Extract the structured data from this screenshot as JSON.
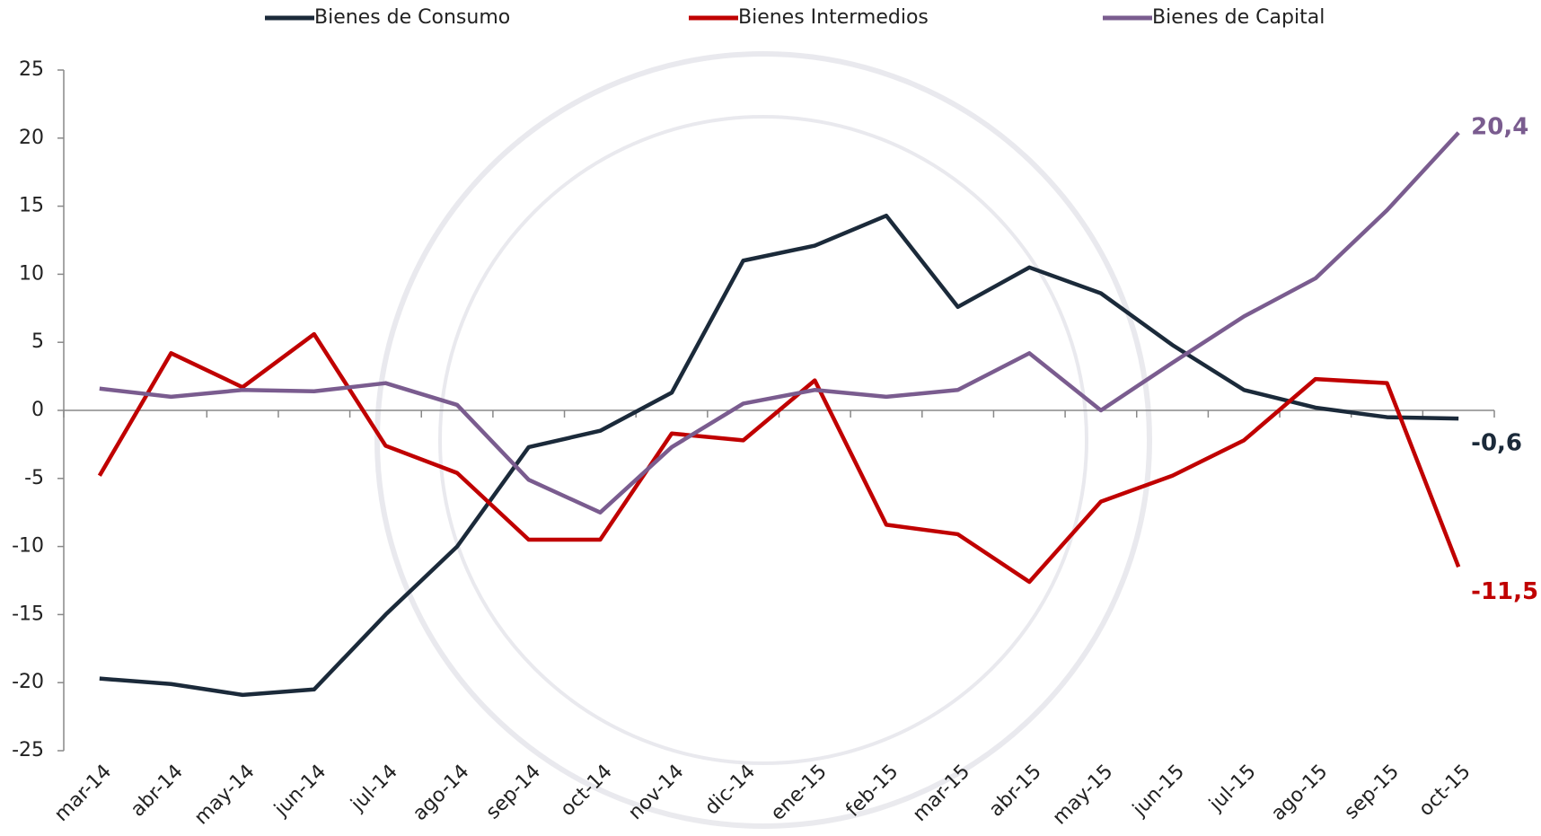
{
  "chart_data": {
    "type": "line",
    "categories": [
      "mar-14",
      "abr-14",
      "may-14",
      "jun-14",
      "jul-14",
      "ago-14",
      "sep-14",
      "oct-14",
      "nov-14",
      "dic-14",
      "ene-15",
      "feb-15",
      "mar-15",
      "abr-15",
      "may-15",
      "jun-15",
      "jul-15",
      "ago-15",
      "sep-15",
      "oct-15"
    ],
    "series": [
      {
        "name": "Bienes de Consumo",
        "color": "#1b2a3a",
        "values": [
          -19.7,
          -20.1,
          -20.9,
          -20.5,
          -15.0,
          -10.0,
          -2.7,
          -1.5,
          1.3,
          11.0,
          12.1,
          14.3,
          7.6,
          10.5,
          8.6,
          4.8,
          1.5,
          0.2,
          -0.5,
          -0.6
        ],
        "value_labels": [
          null,
          null,
          null,
          null,
          null,
          null,
          null,
          null,
          null,
          null,
          null,
          null,
          null,
          null,
          null,
          null,
          null,
          null,
          null,
          "-0,6"
        ]
      },
      {
        "name": "Bienes Intermedios",
        "color": "#c00000",
        "values": [
          -4.8,
          4.2,
          1.7,
          5.6,
          -2.6,
          -4.6,
          -9.5,
          -9.5,
          -1.7,
          -2.2,
          2.2,
          -8.4,
          -9.1,
          -12.6,
          -6.7,
          -4.8,
          -2.2,
          2.3,
          2.0,
          -11.5
        ],
        "value_labels": [
          null,
          null,
          null,
          null,
          null,
          null,
          null,
          null,
          null,
          null,
          null,
          null,
          null,
          null,
          null,
          null,
          null,
          null,
          null,
          "-11,5"
        ]
      },
      {
        "name": "Bienes de Capital",
        "color": "#7a5c8f",
        "values": [
          1.6,
          1.0,
          1.5,
          1.4,
          2.0,
          0.4,
          -5.1,
          -7.5,
          -2.7,
          0.5,
          1.5,
          1.0,
          1.5,
          4.2,
          0.0,
          3.5,
          6.9,
          9.7,
          14.7,
          20.4
        ],
        "value_labels": [
          null,
          null,
          null,
          null,
          null,
          null,
          null,
          null,
          null,
          null,
          null,
          null,
          null,
          null,
          null,
          null,
          null,
          null,
          null,
          "20,4"
        ]
      }
    ],
    "ylim": [
      -25,
      25
    ],
    "yticks": [
      -25,
      -20,
      -15,
      -10,
      -5,
      0,
      5,
      10,
      15,
      20,
      25
    ]
  }
}
